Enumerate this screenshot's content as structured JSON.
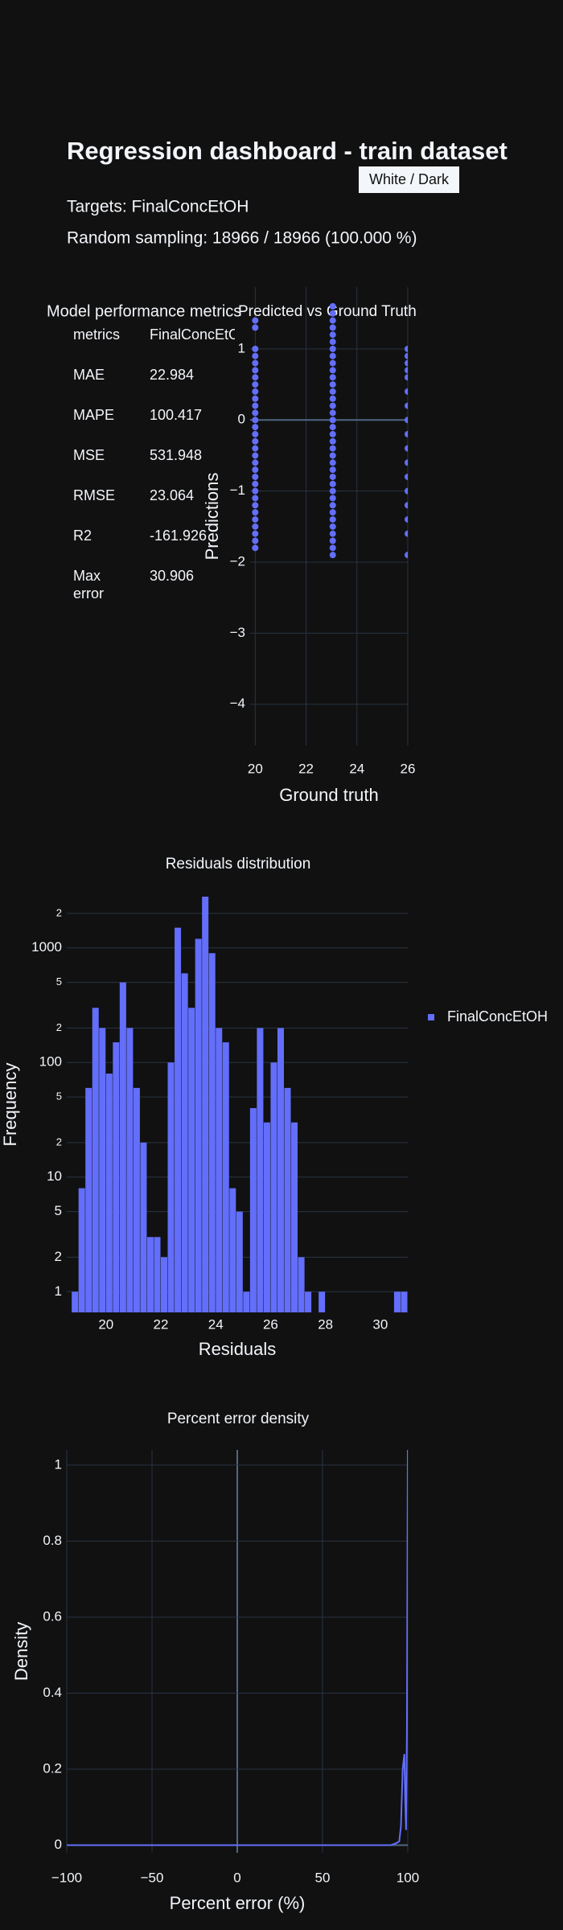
{
  "header": {
    "title": "Regression dashboard - train dataset",
    "targets": "Targets: FinalConcEtOH",
    "sampling": "Random sampling: 18966 / 18966 (100.000 %)",
    "button": "White / Dark"
  },
  "metrics_table": {
    "title": "Model performance metrics",
    "header": [
      "metrics",
      "FinalConcEtOH"
    ],
    "rows": [
      [
        "MAE",
        22.984
      ],
      [
        "MAPE",
        100.417
      ],
      [
        "MSE",
        531.948
      ],
      [
        "RMSE",
        23.064
      ],
      [
        "R2",
        -161.926
      ],
      [
        "Max error",
        30.906
      ]
    ]
  },
  "chart_data": [
    {
      "type": "scatter",
      "title": "Predicted vs Ground Truth",
      "x_label": "Ground truth",
      "y_label": "Predictions",
      "color": "#636efa",
      "grid": true,
      "x": [
        20,
        20,
        20,
        20,
        20,
        20,
        20,
        20,
        20,
        20,
        20,
        20,
        20,
        20,
        20,
        20,
        20,
        20,
        20,
        20,
        20,
        20,
        20,
        20,
        20,
        20,
        20,
        20,
        20,
        20,
        20,
        23.05,
        23.05,
        23.05,
        23.05,
        23.05,
        23.05,
        23.05,
        23.05,
        23.05,
        23.05,
        23.05,
        23.05,
        23.05,
        23.05,
        23.05,
        23.05,
        23.05,
        23.05,
        23.05,
        23.05,
        23.05,
        23.05,
        23.05,
        23.05,
        23.05,
        23.05,
        23.05,
        23.05,
        23.05,
        23.05,
        23.05,
        23.05,
        23.05,
        23.05,
        23.05,
        23.05,
        23.05,
        26,
        26,
        26,
        26,
        26,
        26,
        26,
        26,
        26,
        26,
        26,
        26,
        26,
        26,
        26,
        26,
        26
      ],
      "y": [
        1.4,
        1.3,
        1.0,
        0.9,
        0.8,
        0.7,
        0.6,
        0.5,
        0.4,
        0.3,
        0.2,
        0.1,
        0,
        -0.1,
        -0.2,
        -0.3,
        -0.4,
        -0.5,
        -0.6,
        -0.7,
        -0.8,
        -0.9,
        -1,
        -1.1,
        -1.2,
        -1.3,
        -1.4,
        -1.5,
        -1.6,
        -1.7,
        -1.8,
        1.97,
        1.6,
        1.5,
        1.4,
        1.3,
        1.2,
        1.1,
        1.0,
        0.9,
        0.8,
        0.7,
        0.6,
        0.5,
        0.4,
        0.3,
        0.2,
        0.1,
        0,
        -0.1,
        -0.2,
        -0.3,
        -0.4,
        -0.5,
        -0.6,
        -0.7,
        -0.8,
        -0.9,
        -1,
        -1.1,
        -1.2,
        -1.3,
        -1.4,
        -1.5,
        -1.6,
        -1.7,
        -1.8,
        -1.9,
        1.0,
        0.9,
        0.8,
        0.7,
        0.6,
        0.4,
        0.2,
        0,
        -0.2,
        -0.4,
        -0.6,
        -0.8,
        -1,
        -1.2,
        -1.4,
        -1.6,
        -1.9
      ],
      "xlim": [
        19.8,
        26
      ],
      "xticks": [
        20,
        22,
        24,
        26
      ],
      "ylim": [
        -4.58,
        1.87
      ],
      "yticks": [
        {
          "value": -4,
          "label": "−4"
        },
        {
          "value": -3,
          "label": "−3"
        },
        {
          "value": -2,
          "label": "−2"
        },
        {
          "value": -1,
          "label": "−1"
        },
        0,
        1
      ]
    },
    {
      "type": "histogram",
      "title": "Residuals distribution",
      "x_label": "Residuals",
      "y_label": "Frequency",
      "log_y": true,
      "grid": true,
      "legend": "right",
      "bins": [
        18.75,
        19,
        19.25,
        19.5,
        19.75,
        20,
        20.25,
        20.5,
        20.75,
        21,
        21.25,
        21.5,
        21.75,
        22,
        22.25,
        22.5,
        22.75,
        23,
        23.25,
        23.5,
        23.75,
        24,
        24.25,
        24.5,
        24.75,
        25,
        25.25,
        25.5,
        25.75,
        26,
        26.25,
        26.5,
        26.75,
        27,
        27.25,
        27.5,
        27.75,
        28,
        28.25,
        28.5,
        28.75,
        29,
        29.25,
        29.5,
        29.75,
        30,
        30.25,
        30.5,
        30.75,
        31
      ],
      "series": [
        {
          "name": "FinalConcEtOH",
          "color": "#636efa",
          "values": [
            1,
            8,
            60,
            300,
            200,
            80,
            150,
            500,
            200,
            60,
            20,
            3,
            3,
            2,
            100,
            1500,
            600,
            300,
            1200,
            2800,
            900,
            200,
            150,
            8,
            5,
            1,
            40,
            200,
            30,
            100,
            200,
            60,
            30,
            2,
            1,
            0,
            1,
            0,
            0,
            0,
            0,
            0,
            0,
            0,
            0,
            0,
            0,
            1,
            1
          ]
        }
      ],
      "xlim": [
        18.57,
        31
      ],
      "xticks": [
        20,
        22,
        24,
        26,
        28,
        30
      ],
      "ylim": [
        0.66,
        2800
      ],
      "yticks": [
        1,
        2,
        5,
        10,
        {
          "value": 20,
          "label": "2"
        },
        {
          "value": 50,
          "label": "5"
        },
        100,
        {
          "value": 200,
          "label": "2"
        },
        {
          "value": 500,
          "label": "5"
        },
        1000,
        {
          "value": 2000,
          "label": "2"
        }
      ]
    },
    {
      "type": "line",
      "title": "Percent error density",
      "x_label": "Percent error (%)",
      "y_label": "Density",
      "color": "#636efa",
      "grid": true,
      "x": [
        -100,
        90,
        93,
        95,
        96,
        97,
        98,
        98.5,
        99,
        99.5,
        100
      ],
      "values": [
        0,
        0,
        0.005,
        0.01,
        0.05,
        0.2,
        0.24,
        0.12,
        0.04,
        0.3,
        1.04
      ],
      "xlim": [
        -100,
        100
      ],
      "xticks": [
        {
          "value": -100,
          "label": "−100"
        },
        {
          "value": -50,
          "label": "−50"
        },
        0,
        50,
        100
      ],
      "ylim": [
        -0.02,
        1.04
      ],
      "yticks": [
        0,
        0.2,
        0.4,
        0.6,
        0.8,
        1
      ]
    }
  ]
}
